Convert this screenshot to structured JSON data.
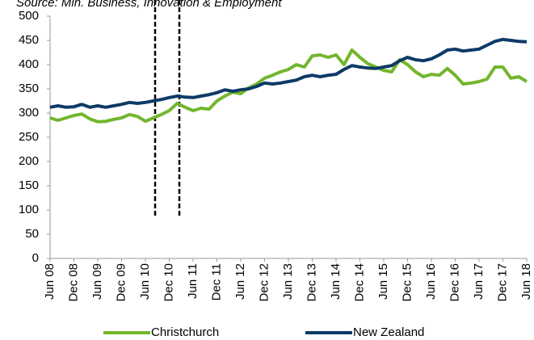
{
  "chart_data": {
    "type": "line",
    "source": "Source: Min. Business, Innovation & Employment",
    "categories": [
      "Jun 08",
      null,
      null,
      "Dec 08",
      null,
      null,
      "Jun 09",
      null,
      null,
      "Dec 09",
      null,
      null,
      "Jun 10",
      null,
      null,
      "Dec 10",
      null,
      null,
      "Jun 11",
      null,
      null,
      "Dec 11",
      null,
      null,
      "Jun 12",
      null,
      null,
      "Dec 12",
      null,
      null,
      "Jun 13",
      null,
      null,
      "Dec 13",
      null,
      null,
      "Jun 14",
      null,
      null,
      "Dec 14",
      null,
      null,
      "Jun 15",
      null,
      null,
      "Dec 15",
      null,
      null,
      "Jun 16",
      null,
      null,
      "Dec 16",
      null,
      null,
      "Jun 17",
      null,
      null,
      "Dec 17",
      null,
      null,
      "Jun 18"
    ],
    "series": [
      {
        "name": "Christchurch",
        "color": "#72b62e",
        "values": [
          290,
          285,
          290,
          295,
          298,
          288,
          282,
          283,
          287,
          290,
          297,
          293,
          283,
          290,
          297,
          305,
          320,
          312,
          305,
          310,
          308,
          325,
          335,
          343,
          340,
          352,
          360,
          372,
          378,
          385,
          390,
          400,
          395,
          418,
          420,
          415,
          420,
          400,
          430,
          415,
          402,
          395,
          388,
          385,
          410,
          400,
          385,
          375,
          380,
          378,
          392,
          378,
          360,
          362,
          365,
          370,
          395,
          395,
          372,
          375,
          365
        ]
      },
      {
        "name": "New Zealand",
        "color": "#0d3a66",
        "values": [
          312,
          315,
          312,
          313,
          318,
          312,
          315,
          312,
          315,
          318,
          322,
          320,
          322,
          325,
          328,
          332,
          335,
          333,
          332,
          335,
          338,
          342,
          348,
          345,
          348,
          350,
          355,
          362,
          360,
          362,
          365,
          368,
          375,
          378,
          375,
          378,
          380,
          390,
          398,
          395,
          393,
          392,
          395,
          398,
          408,
          415,
          410,
          408,
          412,
          420,
          430,
          432,
          428,
          430,
          432,
          440,
          448,
          452,
          450,
          448,
          447
        ]
      }
    ],
    "ylim": [
      0,
      500
    ],
    "yticks": [
      0,
      50,
      100,
      150,
      200,
      250,
      300,
      350,
      400,
      450,
      500
    ],
    "grid": false
  }
}
